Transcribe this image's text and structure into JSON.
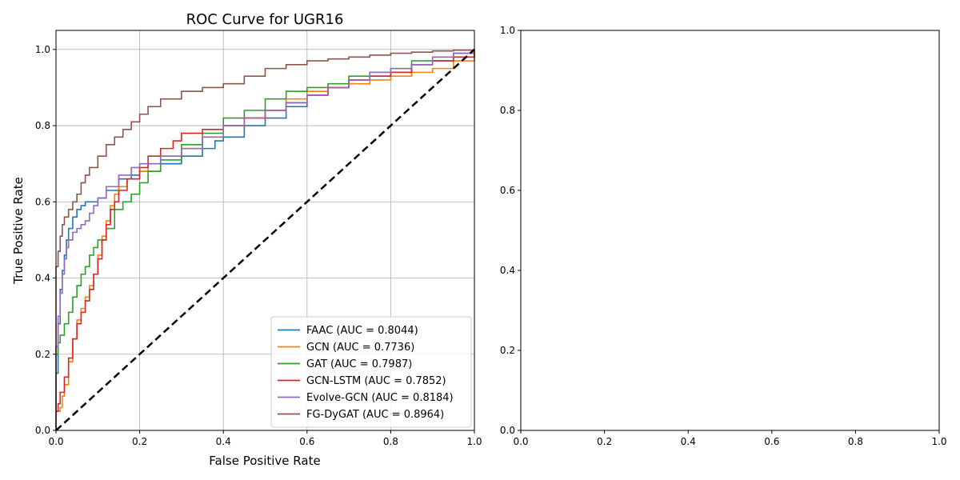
{
  "chart_data": [
    {
      "type": "line",
      "title": "ROC Curve for UGR16",
      "xlabel": "False Positive Rate",
      "ylabel": "True Positive Rate",
      "xlim": [
        0.0,
        1.0
      ],
      "ylim": [
        0.0,
        1.05
      ],
      "xticks": [
        "0.0",
        "0.2",
        "0.4",
        "0.6",
        "0.8",
        "1.0"
      ],
      "yticks": [
        "0.0",
        "0.2",
        "0.4",
        "0.6",
        "0.8",
        "1.0"
      ],
      "grid": true,
      "legend_position": "lower-right",
      "series": [
        {
          "name": "FAAC (AUC = 0.8044)",
          "color": "#1f77b4",
          "step": true,
          "x": [
            0,
            0,
            0.005,
            0.01,
            0.015,
            0.02,
            0.025,
            0.03,
            0.04,
            0.05,
            0.06,
            0.07,
            0.08,
            0.1,
            0.12,
            0.15,
            0.18,
            0.2,
            0.25,
            0.3,
            0.35,
            0.38,
            0.4,
            0.45,
            0.5,
            0.55,
            0.6,
            0.65,
            0.7,
            0.75,
            0.8,
            0.85,
            0.9,
            0.95,
            1.0
          ],
          "y": [
            0,
            0.15,
            0.28,
            0.37,
            0.42,
            0.46,
            0.5,
            0.53,
            0.56,
            0.58,
            0.59,
            0.6,
            0.6,
            0.61,
            0.63,
            0.66,
            0.67,
            0.68,
            0.7,
            0.72,
            0.74,
            0.76,
            0.77,
            0.8,
            0.82,
            0.85,
            0.88,
            0.9,
            0.92,
            0.93,
            0.94,
            0.96,
            0.97,
            0.98,
            1.0
          ]
        },
        {
          "name": "GCN (AUC = 0.7736)",
          "color": "#ff7f0e",
          "step": true,
          "x": [
            0,
            0,
            0.01,
            0.015,
            0.02,
            0.03,
            0.04,
            0.05,
            0.06,
            0.07,
            0.08,
            0.09,
            0.1,
            0.11,
            0.12,
            0.13,
            0.14,
            0.15,
            0.17,
            0.2,
            0.22,
            0.25,
            0.3,
            0.35,
            0.4,
            0.45,
            0.5,
            0.55,
            0.6,
            0.65,
            0.7,
            0.75,
            0.8,
            0.85,
            0.9,
            0.95,
            1.0
          ],
          "y": [
            0,
            0.05,
            0.06,
            0.09,
            0.12,
            0.18,
            0.24,
            0.29,
            0.32,
            0.35,
            0.38,
            0.41,
            0.46,
            0.51,
            0.55,
            0.59,
            0.62,
            0.64,
            0.66,
            0.68,
            0.7,
            0.72,
            0.74,
            0.77,
            0.8,
            0.82,
            0.84,
            0.87,
            0.89,
            0.9,
            0.91,
            0.92,
            0.93,
            0.94,
            0.95,
            0.97,
            1.0
          ]
        },
        {
          "name": "GAT (AUC = 0.7987)",
          "color": "#2ca02c",
          "step": true,
          "x": [
            0,
            0,
            0.005,
            0.01,
            0.02,
            0.03,
            0.04,
            0.05,
            0.06,
            0.07,
            0.08,
            0.09,
            0.1,
            0.12,
            0.14,
            0.16,
            0.18,
            0.2,
            0.22,
            0.25,
            0.3,
            0.35,
            0.4,
            0.45,
            0.5,
            0.55,
            0.6,
            0.65,
            0.7,
            0.75,
            0.8,
            0.85,
            0.9,
            0.95,
            1.0
          ],
          "y": [
            0,
            0.2,
            0.23,
            0.25,
            0.28,
            0.31,
            0.35,
            0.38,
            0.41,
            0.43,
            0.46,
            0.48,
            0.5,
            0.53,
            0.58,
            0.6,
            0.62,
            0.65,
            0.68,
            0.71,
            0.75,
            0.78,
            0.82,
            0.84,
            0.87,
            0.89,
            0.9,
            0.91,
            0.93,
            0.94,
            0.95,
            0.97,
            0.98,
            0.99,
            1.0
          ]
        },
        {
          "name": "GCN-LSTM (AUC = 0.7852)",
          "color": "#d62728",
          "step": true,
          "x": [
            0,
            0,
            0.005,
            0.01,
            0.02,
            0.03,
            0.04,
            0.05,
            0.06,
            0.07,
            0.08,
            0.09,
            0.1,
            0.11,
            0.12,
            0.13,
            0.14,
            0.15,
            0.17,
            0.2,
            0.22,
            0.25,
            0.28,
            0.3,
            0.35,
            0.4,
            0.45,
            0.5,
            0.55,
            0.6,
            0.65,
            0.7,
            0.75,
            0.8,
            0.85,
            0.9,
            0.95,
            1.0
          ],
          "y": [
            0,
            0.05,
            0.07,
            0.1,
            0.14,
            0.19,
            0.24,
            0.28,
            0.31,
            0.34,
            0.37,
            0.41,
            0.45,
            0.5,
            0.54,
            0.58,
            0.6,
            0.63,
            0.66,
            0.69,
            0.72,
            0.74,
            0.76,
            0.78,
            0.79,
            0.8,
            0.82,
            0.84,
            0.86,
            0.88,
            0.9,
            0.92,
            0.93,
            0.94,
            0.96,
            0.97,
            0.98,
            1.0
          ]
        },
        {
          "name": "Evolve-GCN (AUC = 0.8184)",
          "color": "#9467bd",
          "step": true,
          "x": [
            0,
            0,
            0.005,
            0.01,
            0.015,
            0.02,
            0.025,
            0.03,
            0.04,
            0.05,
            0.06,
            0.07,
            0.08,
            0.09,
            0.1,
            0.12,
            0.15,
            0.18,
            0.2,
            0.25,
            0.3,
            0.35,
            0.4,
            0.45,
            0.5,
            0.55,
            0.6,
            0.65,
            0.7,
            0.75,
            0.8,
            0.85,
            0.9,
            0.95,
            1.0
          ],
          "y": [
            0,
            0.22,
            0.3,
            0.36,
            0.41,
            0.45,
            0.48,
            0.5,
            0.52,
            0.53,
            0.54,
            0.55,
            0.57,
            0.59,
            0.61,
            0.64,
            0.67,
            0.69,
            0.7,
            0.72,
            0.74,
            0.77,
            0.8,
            0.82,
            0.84,
            0.86,
            0.88,
            0.9,
            0.92,
            0.94,
            0.95,
            0.96,
            0.98,
            0.99,
            1.0
          ]
        },
        {
          "name": "FG-DyGAT (AUC = 0.8964)",
          "color": "#8c564b",
          "step": true,
          "x": [
            0,
            0,
            0.005,
            0.01,
            0.015,
            0.02,
            0.03,
            0.04,
            0.05,
            0.06,
            0.07,
            0.08,
            0.1,
            0.12,
            0.14,
            0.16,
            0.18,
            0.2,
            0.22,
            0.25,
            0.3,
            0.35,
            0.4,
            0.45,
            0.5,
            0.55,
            0.6,
            0.65,
            0.7,
            0.75,
            0.8,
            0.85,
            0.9,
            0.95,
            1.0
          ],
          "y": [
            0,
            0.43,
            0.47,
            0.51,
            0.54,
            0.56,
            0.58,
            0.6,
            0.62,
            0.65,
            0.67,
            0.69,
            0.72,
            0.75,
            0.77,
            0.79,
            0.81,
            0.83,
            0.85,
            0.87,
            0.89,
            0.9,
            0.91,
            0.93,
            0.95,
            0.96,
            0.97,
            0.975,
            0.98,
            0.985,
            0.99,
            0.993,
            0.996,
            0.998,
            1.0
          ]
        }
      ],
      "reference_line": {
        "x": [
          0,
          1
        ],
        "y": [
          0,
          1
        ],
        "color": "#000000",
        "style": "dashed"
      }
    },
    {
      "type": "line",
      "title": "",
      "xlabel": "",
      "ylabel": "",
      "xlim": [
        0.0,
        1.0
      ],
      "ylim": [
        0.0,
        1.0
      ],
      "xticks": [
        "0.0",
        "0.2",
        "0.4",
        "0.6",
        "0.8",
        "1.0"
      ],
      "yticks": [
        "0.0",
        "0.2",
        "0.4",
        "0.6",
        "0.8",
        "1.0"
      ],
      "grid": false,
      "series": []
    }
  ]
}
